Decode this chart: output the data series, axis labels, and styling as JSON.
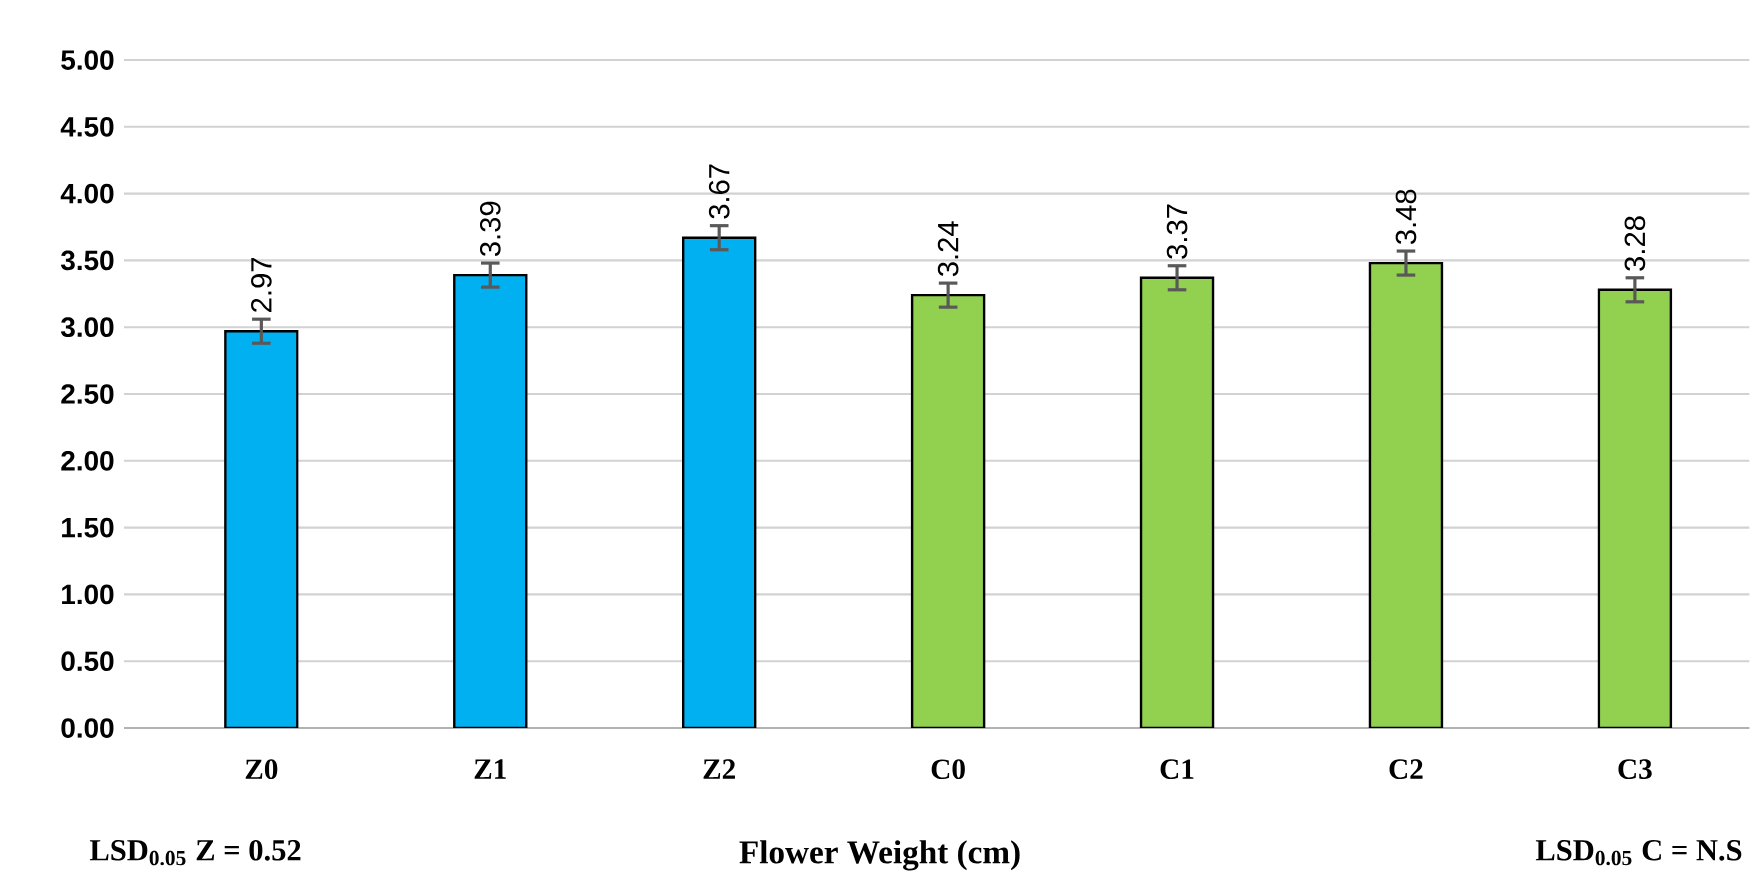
{
  "chart_data": {
    "type": "bar",
    "categories": [
      "Z0",
      "Z1",
      "Z2",
      "C0",
      "C1",
      "C2",
      "C3"
    ],
    "values": [
      2.97,
      3.39,
      3.67,
      3.24,
      3.37,
      3.48,
      3.28
    ],
    "colors": [
      "#00b0f0",
      "#00b0f0",
      "#00b0f0",
      "#92d050",
      "#92d050",
      "#92d050",
      "#92d050"
    ],
    "errors": [
      0.09,
      0.09,
      0.09,
      0.09,
      0.09,
      0.09,
      0.09
    ],
    "data_labels": true,
    "xlabel": "Flower  Weight (cm)",
    "annotations": [
      "LSD$_{0.05}$ Z = 0.52",
      "LSD$_{0.05}$ C = N.S"
    ],
    "ylim": [
      0,
      5
    ],
    "yticks": [
      {
        "value": 0,
        "label": "0.00"
      },
      {
        "value": 0.5,
        "label": "0.50"
      },
      {
        "value": 1,
        "label": "1.00"
      },
      {
        "value": 1.5,
        "label": "1.50"
      },
      {
        "value": 2,
        "label": "2.00"
      },
      {
        "value": 2.5,
        "label": "2.50"
      },
      {
        "value": 3,
        "label": "3.00"
      },
      {
        "value": 3.5,
        "label": "3.50"
      },
      {
        "value": 4,
        "label": "4.00"
      },
      {
        "value": 4.5,
        "label": "4.50"
      },
      {
        "value": 5,
        "label": "5.00"
      }
    ],
    "grid": "y"
  }
}
